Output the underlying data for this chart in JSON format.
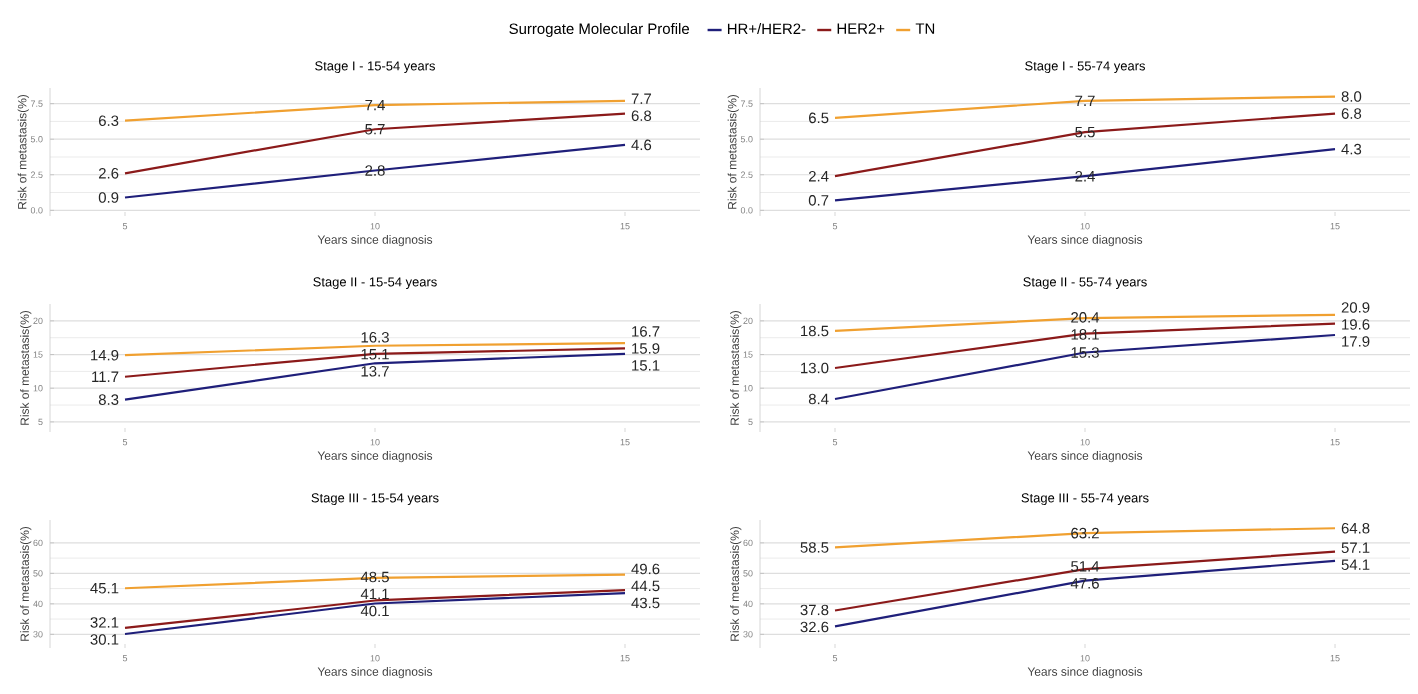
{
  "chart_data": [
    {
      "type": "line",
      "title": "Stage I - 15-54 years",
      "xlabel": "Years since diagnosis",
      "ylabel": "Risk of metastasis(%)",
      "legend_title": "Surrogate Molecular Profile",
      "legend": "top",
      "grid": "y",
      "x": [
        5,
        10,
        15
      ],
      "xlim": [
        3.5,
        16.5
      ],
      "xticks": [
        5,
        10,
        15
      ],
      "ylim": [
        -0.4,
        8.6
      ],
      "yticks": [
        {
          "value": 0,
          "label": "0.0"
        },
        {
          "value": 2.5,
          "label": "2.5"
        },
        {
          "value": 5,
          "label": "5.0"
        },
        {
          "value": 7.5,
          "label": "7.5"
        }
      ],
      "series": [
        {
          "name": "HR+/HER2-",
          "color": "#1f1f7a",
          "values": [
            0.9,
            2.8,
            4.6
          ],
          "value_labels": [
            "0.9",
            "2.8",
            "4.6"
          ]
        },
        {
          "name": "HER2+",
          "color": "#8b1a1a",
          "values": [
            2.6,
            5.7,
            6.8
          ],
          "value_labels": [
            "2.6",
            "5.7",
            "6.8"
          ]
        },
        {
          "name": "TN",
          "color": "#f0a030",
          "values": [
            6.3,
            7.4,
            7.7
          ],
          "value_labels": [
            "6.3",
            "7.4",
            "7.7"
          ]
        }
      ]
    },
    {
      "type": "line",
      "title": "Stage I - 55-74 years",
      "xlabel": "Years since diagnosis",
      "ylabel": "Risk of metastasis(%)",
      "grid": "y",
      "x": [
        5,
        10,
        15
      ],
      "xlim": [
        3.5,
        16.5
      ],
      "xticks": [
        5,
        10,
        15
      ],
      "ylim": [
        -0.4,
        8.6
      ],
      "yticks": [
        {
          "value": 0,
          "label": "0.0"
        },
        {
          "value": 2.5,
          "label": "2.5"
        },
        {
          "value": 5,
          "label": "5.0"
        },
        {
          "value": 7.5,
          "label": "7.5"
        }
      ],
      "series": [
        {
          "color": "#1f1f7a",
          "values": [
            0.7,
            2.4,
            4.3
          ],
          "value_labels": [
            "0.7",
            "2.4",
            "4.3"
          ]
        },
        {
          "color": "#8b1a1a",
          "values": [
            2.4,
            5.5,
            6.8
          ],
          "value_labels": [
            "2.4",
            "5.5",
            "6.8"
          ]
        },
        {
          "color": "#f0a030",
          "values": [
            6.5,
            7.7,
            8.0
          ],
          "value_labels": [
            "6.5",
            "7.7",
            "8.0"
          ]
        }
      ]
    },
    {
      "type": "line",
      "title": "Stage II - 15-54 years",
      "xlabel": "Years since diagnosis",
      "ylabel": "Risk of metastasis(%)",
      "grid": "y",
      "x": [
        5,
        10,
        15
      ],
      "xlim": [
        3.5,
        16.5
      ],
      "xticks": [
        5,
        10,
        15
      ],
      "ylim": [
        3.5,
        22.5
      ],
      "yticks": [
        5,
        10,
        15,
        20
      ],
      "series": [
        {
          "color": "#1f1f7a",
          "values": [
            8.3,
            13.7,
            15.1
          ],
          "value_labels": [
            "8.3",
            "13.7",
            "15.1"
          ]
        },
        {
          "color": "#8b1a1a",
          "values": [
            11.7,
            15.1,
            15.9
          ],
          "value_labels": [
            "11.7",
            "15.1",
            "15.9"
          ]
        },
        {
          "color": "#f0a030",
          "values": [
            14.9,
            16.3,
            16.7
          ],
          "value_labels": [
            "14.9",
            "16.3",
            "16.7"
          ]
        }
      ]
    },
    {
      "type": "line",
      "title": "Stage II - 55-74 years",
      "xlabel": "Years since diagnosis",
      "ylabel": "Risk of metastasis(%)",
      "grid": "y",
      "x": [
        5,
        10,
        15
      ],
      "xlim": [
        3.5,
        16.5
      ],
      "xticks": [
        5,
        10,
        15
      ],
      "ylim": [
        3.5,
        22.5
      ],
      "yticks": [
        5,
        10,
        15,
        20
      ],
      "series": [
        {
          "color": "#1f1f7a",
          "values": [
            8.4,
            15.3,
            17.9
          ],
          "value_labels": [
            "8.4",
            "15.3",
            "17.9"
          ]
        },
        {
          "color": "#8b1a1a",
          "values": [
            13.0,
            18.1,
            19.6
          ],
          "value_labels": [
            "13.0",
            "18.1",
            "19.6"
          ]
        },
        {
          "color": "#f0a030",
          "values": [
            18.5,
            20.4,
            20.9
          ],
          "value_labels": [
            "18.5",
            "20.4",
            "20.9"
          ]
        }
      ]
    },
    {
      "type": "line",
      "title": "Stage III - 15-54 years",
      "xlabel": "Years since diagnosis",
      "ylabel": "Risk of metastasis(%)",
      "grid": "y",
      "x": [
        5,
        10,
        15
      ],
      "xlim": [
        3.5,
        16.5
      ],
      "xticks": [
        5,
        10,
        15
      ],
      "ylim": [
        25.5,
        67.5
      ],
      "yticks": [
        30,
        40,
        50,
        60
      ],
      "series": [
        {
          "color": "#1f1f7a",
          "values": [
            30.1,
            40.1,
            43.5
          ],
          "value_labels": [
            "30.1",
            "40.1",
            "43.5"
          ]
        },
        {
          "color": "#8b1a1a",
          "values": [
            32.1,
            41.1,
            44.5
          ],
          "value_labels": [
            "32.1",
            "41.1",
            "44.5"
          ]
        },
        {
          "color": "#f0a030",
          "values": [
            45.1,
            48.5,
            49.6
          ],
          "value_labels": [
            "45.1",
            "48.5",
            "49.6"
          ]
        }
      ]
    },
    {
      "type": "line",
      "title": "Stage III - 55-74 years",
      "xlabel": "Years since diagnosis",
      "ylabel": "Risk of metastasis(%)",
      "grid": "y",
      "x": [
        5,
        10,
        15
      ],
      "xlim": [
        3.5,
        16.5
      ],
      "xticks": [
        5,
        10,
        15
      ],
      "ylim": [
        25.5,
        67.5
      ],
      "yticks": [
        30,
        40,
        50,
        60
      ],
      "series": [
        {
          "color": "#1f1f7a",
          "values": [
            32.6,
            47.6,
            54.1
          ],
          "value_labels": [
            "32.6",
            "47.6",
            "54.1"
          ]
        },
        {
          "color": "#8b1a1a",
          "values": [
            37.8,
            51.4,
            57.1
          ],
          "value_labels": [
            "37.8",
            "51.4",
            "57.1"
          ]
        },
        {
          "color": "#f0a030",
          "values": [
            58.5,
            63.2,
            64.8
          ],
          "value_labels": [
            "58.5",
            "63.2",
            "64.8"
          ]
        }
      ]
    }
  ]
}
